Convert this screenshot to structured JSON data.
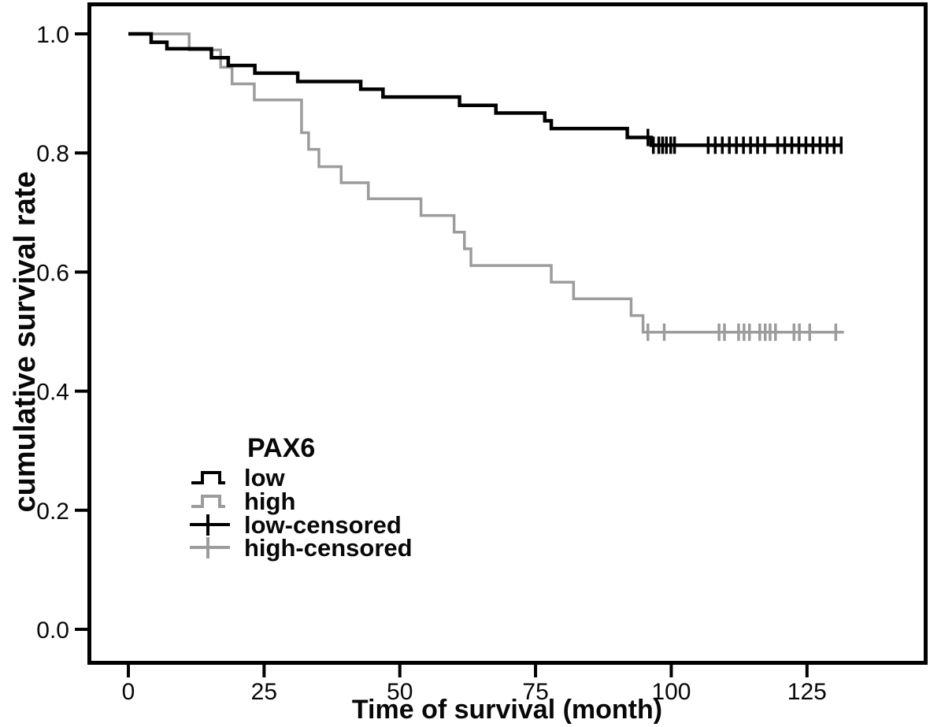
{
  "figure": {
    "x_axis_title": "Time of survival (month)",
    "y_axis_title": "cumulative survival rate"
  },
  "legend": {
    "title": "PAX6",
    "items": [
      {
        "label": "low",
        "type": "step-line",
        "color_key": "low"
      },
      {
        "label": "high",
        "type": "step-line",
        "color_key": "high"
      },
      {
        "label": "low-censored",
        "type": "censor-mark",
        "color_key": "low"
      },
      {
        "label": "high-censored",
        "type": "censor-mark",
        "color_key": "high"
      }
    ]
  },
  "colors": {
    "low": "#000000",
    "high": "#9c9c9c",
    "axis": "#000000"
  },
  "chart_data": {
    "type": "line",
    "subtype": "kaplan-meier-step",
    "title": "",
    "xlabel": "Time of survival (month)",
    "ylabel": "cumulative survival rate",
    "xlim": [
      -7,
      147
    ],
    "ylim": [
      -0.055,
      1.05
    ],
    "x_ticks": [
      0,
      25,
      50,
      75,
      100,
      125
    ],
    "y_ticks": [
      0.0,
      0.2,
      0.4,
      0.6,
      0.8,
      1.0
    ],
    "grid": false,
    "legend_position": "inside-left-middle",
    "series": [
      {
        "name": "low",
        "color_key": "low",
        "stroke_width": 4.5,
        "end_time": 131.5,
        "steps": [
          [
            0,
            1.0
          ],
          [
            4.2,
            0.986
          ],
          [
            7.1,
            0.975
          ],
          [
            15.3,
            0.96
          ],
          [
            18.4,
            0.947
          ],
          [
            23.3,
            0.934
          ],
          [
            31.2,
            0.92
          ],
          [
            42.8,
            0.907
          ],
          [
            46.9,
            0.894
          ],
          [
            61.0,
            0.88
          ],
          [
            67.7,
            0.867
          ],
          [
            76.7,
            0.854
          ],
          [
            77.9,
            0.841
          ],
          [
            91.9,
            0.826
          ],
          [
            96.3,
            0.813
          ]
        ],
        "censored": [
          {
            "t": 95.7,
            "v": 0.826
          },
          {
            "t": 96.7,
            "v": 0.813
          },
          {
            "t": 97.7,
            "v": 0.813
          },
          {
            "t": 98.4,
            "v": 0.813
          },
          {
            "t": 99.1,
            "v": 0.813
          },
          {
            "t": 99.9,
            "v": 0.813
          },
          {
            "t": 100.6,
            "v": 0.813
          },
          {
            "t": 106.8,
            "v": 0.813
          },
          {
            "t": 108.1,
            "v": 0.813
          },
          {
            "t": 109.4,
            "v": 0.813
          },
          {
            "t": 110.7,
            "v": 0.813
          },
          {
            "t": 112.0,
            "v": 0.813
          },
          {
            "t": 113.3,
            "v": 0.813
          },
          {
            "t": 114.6,
            "v": 0.813
          },
          {
            "t": 115.9,
            "v": 0.813
          },
          {
            "t": 117.2,
            "v": 0.813
          },
          {
            "t": 119.6,
            "v": 0.813
          },
          {
            "t": 120.9,
            "v": 0.813
          },
          {
            "t": 122.2,
            "v": 0.813
          },
          {
            "t": 123.5,
            "v": 0.813
          },
          {
            "t": 124.8,
            "v": 0.813
          },
          {
            "t": 126.1,
            "v": 0.813
          },
          {
            "t": 127.4,
            "v": 0.813
          },
          {
            "t": 128.7,
            "v": 0.813
          },
          {
            "t": 130.0,
            "v": 0.813
          },
          {
            "t": 131.3,
            "v": 0.813
          }
        ]
      },
      {
        "name": "high",
        "color_key": "high",
        "stroke_width": 3.5,
        "end_time": 131.8,
        "steps": [
          [
            0,
            1.0
          ],
          [
            11.2,
            0.973
          ],
          [
            17.0,
            0.944
          ],
          [
            19.1,
            0.916
          ],
          [
            23.2,
            0.889
          ],
          [
            31.9,
            0.834
          ],
          [
            33.2,
            0.806
          ],
          [
            35.1,
            0.777
          ],
          [
            39.2,
            0.75
          ],
          [
            44.2,
            0.723
          ],
          [
            53.9,
            0.695
          ],
          [
            60.0,
            0.667
          ],
          [
            61.9,
            0.639
          ],
          [
            63.1,
            0.611
          ],
          [
            77.9,
            0.583
          ],
          [
            82.0,
            0.555
          ],
          [
            92.6,
            0.527
          ],
          [
            94.8,
            0.499
          ]
        ],
        "censored": [
          {
            "t": 95.7,
            "v": 0.499
          },
          {
            "t": 98.7,
            "v": 0.499
          },
          {
            "t": 108.8,
            "v": 0.499
          },
          {
            "t": 109.8,
            "v": 0.499
          },
          {
            "t": 112.4,
            "v": 0.499
          },
          {
            "t": 113.4,
            "v": 0.499
          },
          {
            "t": 114.4,
            "v": 0.499
          },
          {
            "t": 116.3,
            "v": 0.499
          },
          {
            "t": 117.3,
            "v": 0.499
          },
          {
            "t": 118.2,
            "v": 0.499
          },
          {
            "t": 119.2,
            "v": 0.499
          },
          {
            "t": 122.6,
            "v": 0.499
          },
          {
            "t": 123.6,
            "v": 0.499
          },
          {
            "t": 125.5,
            "v": 0.499
          },
          {
            "t": 130.3,
            "v": 0.499
          }
        ]
      }
    ]
  }
}
